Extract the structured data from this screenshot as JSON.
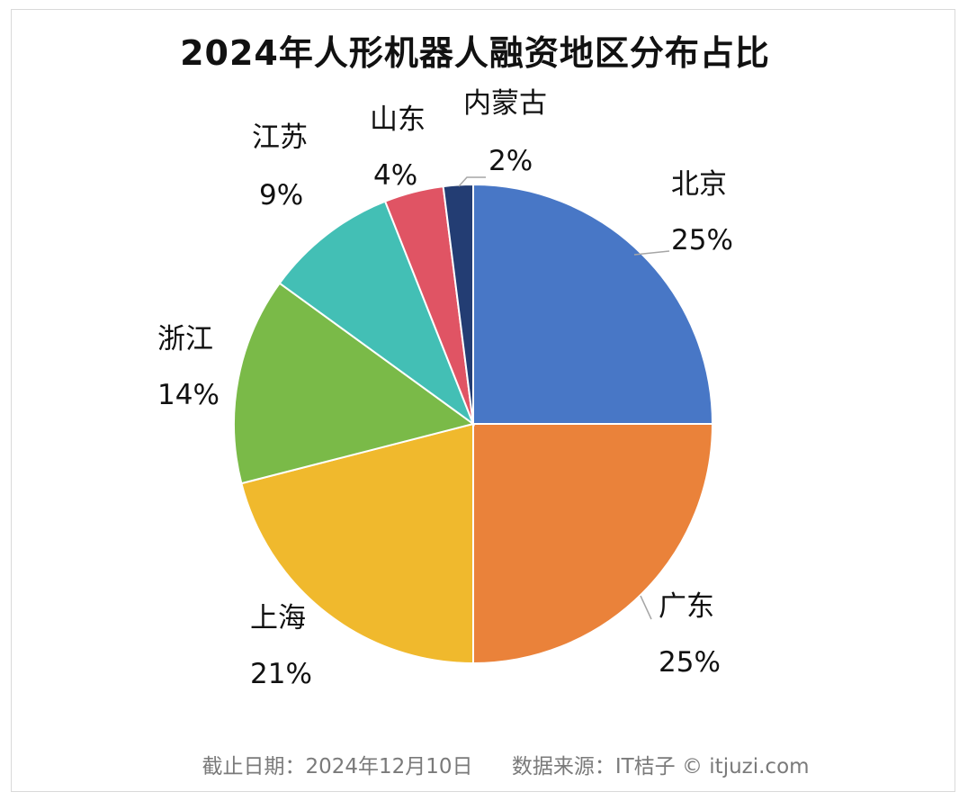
{
  "chart_data": {
    "type": "pie",
    "title": "2024年人形机器人融资地区分布占比",
    "slices": [
      {
        "label": "北京",
        "value": 25,
        "percent_label": "25%",
        "color": "#4877c6"
      },
      {
        "label": "广东",
        "value": 25,
        "percent_label": "25%",
        "color": "#ea823a"
      },
      {
        "label": "上海",
        "value": 21,
        "percent_label": "21%",
        "color": "#f0b92d"
      },
      {
        "label": "浙江",
        "value": 14,
        "percent_label": "14%",
        "color": "#7aba48"
      },
      {
        "label": "江苏",
        "value": 9,
        "percent_label": "9%",
        "color": "#43bfb5"
      },
      {
        "label": "山东",
        "value": 4,
        "percent_label": "4%",
        "color": "#e05464"
      },
      {
        "label": "内蒙古",
        "value": 2,
        "percent_label": "2%",
        "color": "#233d73"
      }
    ]
  },
  "footer": {
    "date": "截止日期：2024年12月10日",
    "source": "数据来源：IT桔子 © itjuzi.com"
  }
}
